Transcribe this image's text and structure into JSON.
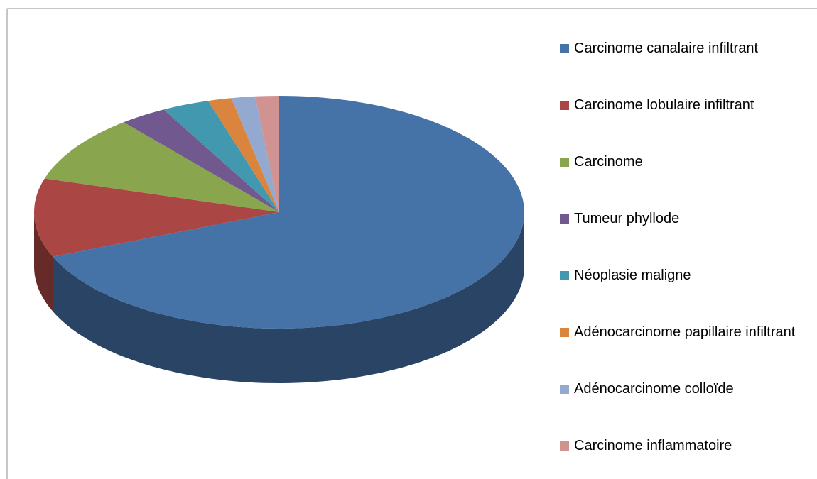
{
  "chart_data": {
    "type": "pie3d",
    "categories": [
      "Carcinome canalaire infiltrant",
      "Carcinome lobulaire infiltrant",
      "Carcinome",
      "Tumeur phyllode",
      "Néoplasie maligne",
      "Adénocarcinome papillaire infiltrant",
      "Adénocarcinome colloïde",
      "Carcinome inflammatoire"
    ],
    "values": [
      44,
      7,
      6,
      2,
      2,
      1,
      1,
      1
    ],
    "colors": [
      "#4572a7",
      "#aa4643",
      "#89a54e",
      "#71588f",
      "#4198af",
      "#db843d",
      "#93a9cf",
      "#d19392"
    ],
    "legend": "right"
  }
}
